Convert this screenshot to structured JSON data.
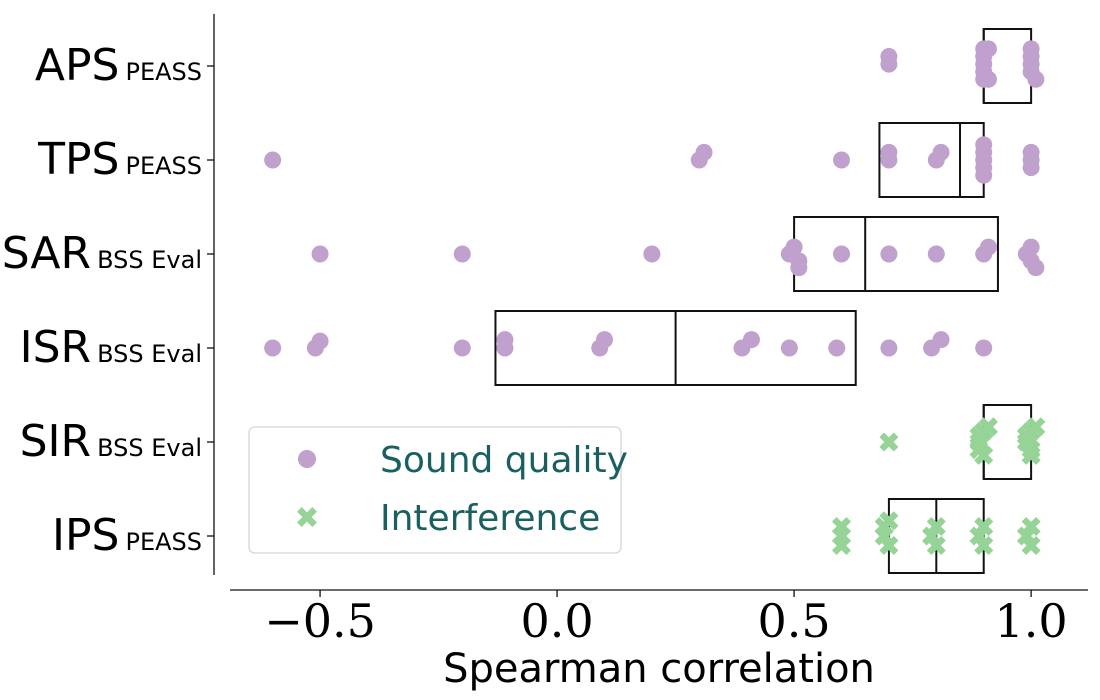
{
  "chart_data": {
    "type": "scatter",
    "subtype": "box-swarm",
    "xlabel": "Spearman correlation",
    "ylabel": "",
    "xlim": [
      -0.69,
      1.12
    ],
    "xticks": [
      -0.5,
      0.0,
      0.5,
      1.0
    ],
    "xtick_labels": [
      "−0.5",
      "0.0",
      "0.5",
      "1.0"
    ],
    "grid": false,
    "legend_position": "lower-left",
    "categories": [
      {
        "main": "APS",
        "sub": "PEASS"
      },
      {
        "main": "TPS",
        "sub": "PEASS"
      },
      {
        "main": "SAR",
        "sub": "BSS Eval"
      },
      {
        "main": "ISR",
        "sub": "BSS Eval"
      },
      {
        "main": "SIR",
        "sub": "BSS Eval"
      },
      {
        "main": "IPS",
        "sub": "PEASS"
      }
    ],
    "boxes": [
      {
        "q1": 0.9,
        "median": 0.9,
        "q3": 1.0
      },
      {
        "q1": 0.68,
        "median": 0.85,
        "q3": 0.9
      },
      {
        "q1": 0.5,
        "median": 0.65,
        "q3": 0.93
      },
      {
        "q1": -0.13,
        "median": 0.25,
        "q3": 0.63
      },
      {
        "q1": 0.9,
        "median": 0.9,
        "q3": 1.0
      },
      {
        "q1": 0.7,
        "median": 0.8,
        "q3": 0.9
      }
    ],
    "series": [
      {
        "name": "Sound quality",
        "marker": "circle",
        "color": "#c0a0cc",
        "points": [
          {
            "cat": 0,
            "x": 0.9,
            "off": -0.45
          },
          {
            "cat": 0,
            "x": 0.91,
            "off": -0.45
          },
          {
            "cat": 0,
            "x": 1.0,
            "off": -0.45
          },
          {
            "cat": 0,
            "x": 0.7,
            "off": -0.25
          },
          {
            "cat": 0,
            "x": 0.9,
            "off": -0.25
          },
          {
            "cat": 0,
            "x": 1.0,
            "off": -0.25
          },
          {
            "cat": 0,
            "x": 0.7,
            "off": -0.05
          },
          {
            "cat": 0,
            "x": 0.9,
            "off": -0.05
          },
          {
            "cat": 0,
            "x": 1.0,
            "off": -0.05
          },
          {
            "cat": 0,
            "x": 0.9,
            "off": 0.15
          },
          {
            "cat": 0,
            "x": 1.0,
            "off": 0.15
          },
          {
            "cat": 0,
            "x": 0.9,
            "off": 0.35
          },
          {
            "cat": 0,
            "x": 0.91,
            "off": 0.35
          },
          {
            "cat": 0,
            "x": 1.01,
            "off": 0.35
          },
          {
            "cat": 1,
            "x": 0.9,
            "off": -0.4
          },
          {
            "cat": 1,
            "x": 0.31,
            "off": -0.2
          },
          {
            "cat": 1,
            "x": 0.7,
            "off": -0.2
          },
          {
            "cat": 1,
            "x": 0.81,
            "off": -0.2
          },
          {
            "cat": 1,
            "x": 0.9,
            "off": -0.2
          },
          {
            "cat": 1,
            "x": 1.0,
            "off": -0.2
          },
          {
            "cat": 1,
            "x": -0.6,
            "off": 0.0
          },
          {
            "cat": 1,
            "x": 0.3,
            "off": 0.0
          },
          {
            "cat": 1,
            "x": 0.6,
            "off": 0.0
          },
          {
            "cat": 1,
            "x": 0.7,
            "off": 0.0
          },
          {
            "cat": 1,
            "x": 0.8,
            "off": 0.0
          },
          {
            "cat": 1,
            "x": 0.9,
            "off": 0.0
          },
          {
            "cat": 1,
            "x": 1.0,
            "off": 0.0
          },
          {
            "cat": 1,
            "x": 0.9,
            "off": 0.2
          },
          {
            "cat": 1,
            "x": 1.0,
            "off": 0.2
          },
          {
            "cat": 1,
            "x": 0.9,
            "off": 0.4
          },
          {
            "cat": 2,
            "x": 0.5,
            "off": -0.18
          },
          {
            "cat": 2,
            "x": 0.91,
            "off": -0.18
          },
          {
            "cat": 2,
            "x": 1.0,
            "off": -0.18
          },
          {
            "cat": 2,
            "x": -0.5,
            "off": 0.0
          },
          {
            "cat": 2,
            "x": -0.2,
            "off": 0.0
          },
          {
            "cat": 2,
            "x": 0.2,
            "off": 0.0
          },
          {
            "cat": 2,
            "x": 0.49,
            "off": 0.0
          },
          {
            "cat": 2,
            "x": 0.6,
            "off": 0.0
          },
          {
            "cat": 2,
            "x": 0.7,
            "off": 0.0
          },
          {
            "cat": 2,
            "x": 0.8,
            "off": 0.0
          },
          {
            "cat": 2,
            "x": 0.9,
            "off": 0.0
          },
          {
            "cat": 2,
            "x": 0.99,
            "off": 0.0
          },
          {
            "cat": 2,
            "x": 0.51,
            "off": 0.18
          },
          {
            "cat": 2,
            "x": 1.0,
            "off": 0.18
          },
          {
            "cat": 2,
            "x": 0.51,
            "off": 0.36
          },
          {
            "cat": 2,
            "x": 1.01,
            "off": 0.36
          },
          {
            "cat": 3,
            "x": -0.5,
            "off": -0.18
          },
          {
            "cat": 3,
            "x": -0.11,
            "off": -0.22
          },
          {
            "cat": 3,
            "x": 0.1,
            "off": -0.22
          },
          {
            "cat": 3,
            "x": 0.41,
            "off": -0.22
          },
          {
            "cat": 3,
            "x": 0.81,
            "off": -0.22
          },
          {
            "cat": 3,
            "x": -0.6,
            "off": 0.0
          },
          {
            "cat": 3,
            "x": -0.51,
            "off": 0.0
          },
          {
            "cat": 3,
            "x": -0.2,
            "off": 0.0
          },
          {
            "cat": 3,
            "x": -0.11,
            "off": 0.0
          },
          {
            "cat": 3,
            "x": 0.09,
            "off": 0.0
          },
          {
            "cat": 3,
            "x": 0.39,
            "off": 0.0
          },
          {
            "cat": 3,
            "x": 0.49,
            "off": 0.0
          },
          {
            "cat": 3,
            "x": 0.59,
            "off": 0.0
          },
          {
            "cat": 3,
            "x": 0.7,
            "off": 0.0
          },
          {
            "cat": 3,
            "x": 0.79,
            "off": 0.0
          },
          {
            "cat": 3,
            "x": 0.9,
            "off": 0.0
          }
        ]
      },
      {
        "name": "Interference",
        "marker": "x",
        "color": "#96d396",
        "points": [
          {
            "cat": 4,
            "x": 0.91,
            "off": -0.4
          },
          {
            "cat": 4,
            "x": 1.01,
            "off": -0.4
          },
          {
            "cat": 4,
            "x": 0.9,
            "off": -0.28
          },
          {
            "cat": 4,
            "x": 1.0,
            "off": -0.28
          },
          {
            "cat": 4,
            "x": 0.89,
            "off": -0.16
          },
          {
            "cat": 4,
            "x": 0.99,
            "off": -0.16
          },
          {
            "cat": 4,
            "x": 0.7,
            "off": 0.0
          },
          {
            "cat": 4,
            "x": 0.89,
            "off": 0.0
          },
          {
            "cat": 4,
            "x": 0.99,
            "off": 0.0
          },
          {
            "cat": 4,
            "x": 0.89,
            "off": 0.2
          },
          {
            "cat": 4,
            "x": 1.0,
            "off": 0.2
          },
          {
            "cat": 4,
            "x": 0.9,
            "off": 0.35
          },
          {
            "cat": 4,
            "x": 1.0,
            "off": 0.35
          },
          {
            "cat": 5,
            "x": 0.7,
            "off": -0.4
          },
          {
            "cat": 5,
            "x": 0.69,
            "off": -0.25
          },
          {
            "cat": 5,
            "x": 0.6,
            "off": -0.25
          },
          {
            "cat": 5,
            "x": 0.8,
            "off": -0.25
          },
          {
            "cat": 5,
            "x": 0.9,
            "off": -0.25
          },
          {
            "cat": 5,
            "x": 1.0,
            "off": -0.25
          },
          {
            "cat": 5,
            "x": 0.6,
            "off": 0.0
          },
          {
            "cat": 5,
            "x": 0.69,
            "off": 0.0
          },
          {
            "cat": 5,
            "x": 0.79,
            "off": 0.0
          },
          {
            "cat": 5,
            "x": 0.89,
            "off": 0.0
          },
          {
            "cat": 5,
            "x": 0.99,
            "off": 0.0
          },
          {
            "cat": 5,
            "x": 0.6,
            "off": 0.25
          },
          {
            "cat": 5,
            "x": 0.7,
            "off": 0.25
          },
          {
            "cat": 5,
            "x": 0.8,
            "off": 0.25
          },
          {
            "cat": 5,
            "x": 0.9,
            "off": 0.25
          },
          {
            "cat": 5,
            "x": 1.0,
            "off": 0.25
          }
        ]
      }
    ]
  }
}
